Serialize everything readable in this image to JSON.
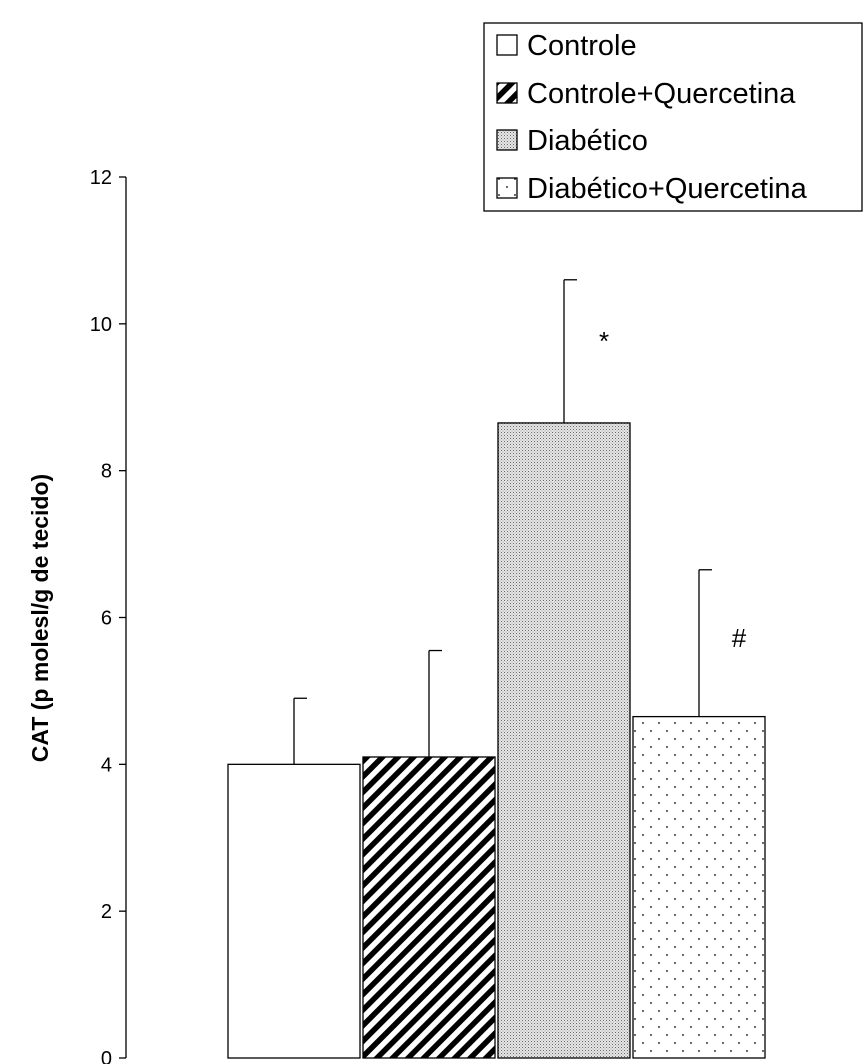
{
  "chart_data": {
    "type": "bar",
    "title": "",
    "xlabel": "",
    "ylabel": "CAT (p molesl/g de tecido)",
    "ylim": [
      0,
      12
    ],
    "yticks": [
      "0",
      "2",
      "4",
      "6",
      "8",
      "10",
      "12"
    ],
    "legend_position": "top-right",
    "grid": false,
    "series": [
      {
        "name": "Controle",
        "value": 4.0,
        "error": 0.9,
        "pattern": "blank",
        "annotation": ""
      },
      {
        "name": "Controle+Quercetina",
        "value": 4.1,
        "error": 1.45,
        "pattern": "diagonal-stripes",
        "annotation": ""
      },
      {
        "name": "Diabético",
        "value": 8.65,
        "error": 1.95,
        "pattern": "fine-dots-dense",
        "annotation": "*"
      },
      {
        "name": "Diabético+Quercetina",
        "value": 4.65,
        "error": 2.0,
        "pattern": "sparse-dots",
        "annotation": "#"
      }
    ]
  }
}
